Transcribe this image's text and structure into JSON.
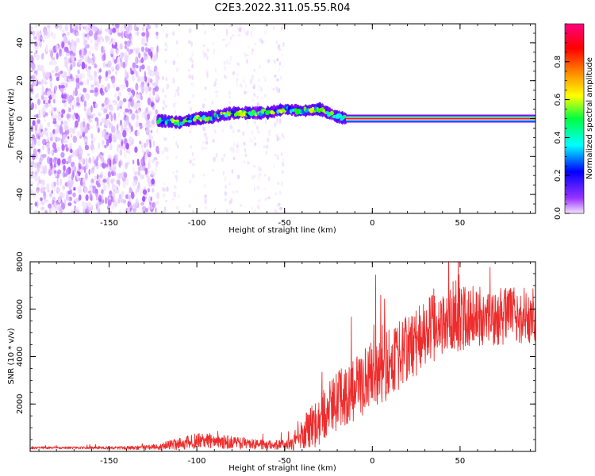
{
  "figure": {
    "title": "C2E3.2022.311.05.55.R04"
  },
  "chart_data": [
    {
      "type": "heatmap",
      "xlabel": "Height of straight line (km)",
      "ylabel": "Frequency (Hz)",
      "xlim": [
        -195,
        93
      ],
      "ylim": [
        -50,
        50
      ],
      "xticks": [
        -150,
        -100,
        -50,
        0,
        50
      ],
      "yticks": [
        -40,
        -20,
        0,
        20,
        40
      ],
      "colorbar": {
        "label": "Normalized spectral amplitude",
        "range": [
          0,
          1
        ],
        "ticks": [
          "0.0",
          "0.2",
          "0.4",
          "0.6",
          "0.8"
        ],
        "colormap": "rainbow (white/violet → blue → cyan → green → yellow → orange → red → magenta)",
        "stops": [
          "#ffffff",
          "#e6ccff",
          "#7f00ff",
          "#0000ff",
          "#00ffff",
          "#00ff00",
          "#ffff00",
          "#ff8000",
          "#ff0000",
          "#ff00ff"
        ]
      },
      "features": [
        {
          "description": "scattered weak noise",
          "x_range": [
            -195,
            -122
          ],
          "freq_range": [
            -50,
            50
          ],
          "amplitude": 0.15
        },
        {
          "description": "sparse noise columns",
          "x_range": [
            -122,
            -50
          ],
          "freq_range": [
            -50,
            50
          ],
          "amplitude": 0.08
        },
        {
          "description": "drifting signal ridge",
          "points": [
            [
              -122,
              -1
            ],
            [
              -110,
              -2
            ],
            [
              -100,
              0
            ],
            [
              -90,
              1
            ],
            [
              -80,
              3
            ],
            [
              -70,
              3
            ],
            [
              -60,
              3
            ],
            [
              -50,
              5
            ],
            [
              -40,
              4
            ],
            [
              -30,
              5
            ],
            [
              -25,
              3
            ],
            [
              -20,
              1
            ],
            [
              -15,
              0
            ]
          ],
          "amplitude": 0.45
        },
        {
          "description": "stable carrier line",
          "x_range": [
            -15,
            93
          ],
          "freq": 0,
          "amplitude": 0.95
        }
      ]
    },
    {
      "type": "line",
      "xlabel": "Height of straight line (km)",
      "ylabel": "SNR (10 * v/v)",
      "xlim": [
        -195,
        93
      ],
      "ylim": [
        0,
        8000
      ],
      "xticks": [
        -150,
        -100,
        -50,
        0,
        50
      ],
      "yticks": [
        2000,
        4000,
        6000,
        8000
      ],
      "series": [
        {
          "color": "#ee2c2c",
          "x": [
            -195,
            -170,
            -150,
            -130,
            -120,
            -110,
            -100,
            -90,
            -80,
            -70,
            -60,
            -50,
            -45,
            -40,
            -35,
            -30,
            -25,
            -20,
            -15,
            -10,
            -5,
            0,
            10,
            20,
            30,
            40,
            50,
            60,
            70,
            80,
            90,
            93
          ],
          "y": [
            150,
            150,
            150,
            160,
            220,
            330,
            450,
            420,
            380,
            320,
            280,
            280,
            340,
            600,
            1000,
            1400,
            1800,
            2100,
            2400,
            2600,
            2900,
            3200,
            3700,
            4300,
            5000,
            5400,
            5600,
            5650,
            5650,
            5700,
            5750,
            5750
          ],
          "spread": [
            50,
            50,
            60,
            90,
            160,
            250,
            330,
            320,
            280,
            230,
            190,
            200,
            300,
            700,
            1000,
            1100,
            1200,
            1250,
            1300,
            1350,
            1400,
            1450,
            1500,
            1500,
            1450,
            1400,
            1350,
            1300,
            1250,
            1200,
            1200,
            1200
          ]
        }
      ]
    }
  ]
}
